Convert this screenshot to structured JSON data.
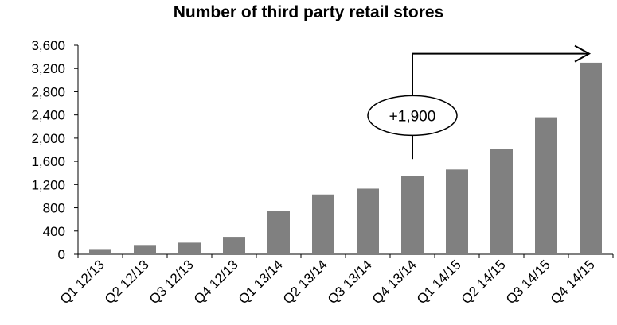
{
  "chart_data": {
    "type": "bar",
    "title": "Number of third party retail stores",
    "xlabel": "",
    "ylabel": "",
    "categories": [
      "Q1 12/13",
      "Q2 12/13",
      "Q3 12/13",
      "Q4 12/13",
      "Q1 13/14",
      "Q2 13/14",
      "Q3 13/14",
      "Q4 13/14",
      "Q1 14/15",
      "Q2 14/15",
      "Q3 14/15",
      "Q4 14/15"
    ],
    "values": [
      90,
      160,
      200,
      300,
      740,
      1030,
      1130,
      1350,
      1460,
      1820,
      2360,
      3300
    ],
    "ylim": [
      0,
      3600
    ],
    "yticks": [
      "0",
      "400",
      "800",
      "1,200",
      "1,600",
      "2,000",
      "2,400",
      "2,800",
      "3,200",
      "3,600"
    ],
    "grid": false,
    "bar_color": "#808080",
    "annotation": {
      "text": "+1,900",
      "from_category": "Q4 13/14",
      "to_category": "Q4 14/15"
    }
  }
}
